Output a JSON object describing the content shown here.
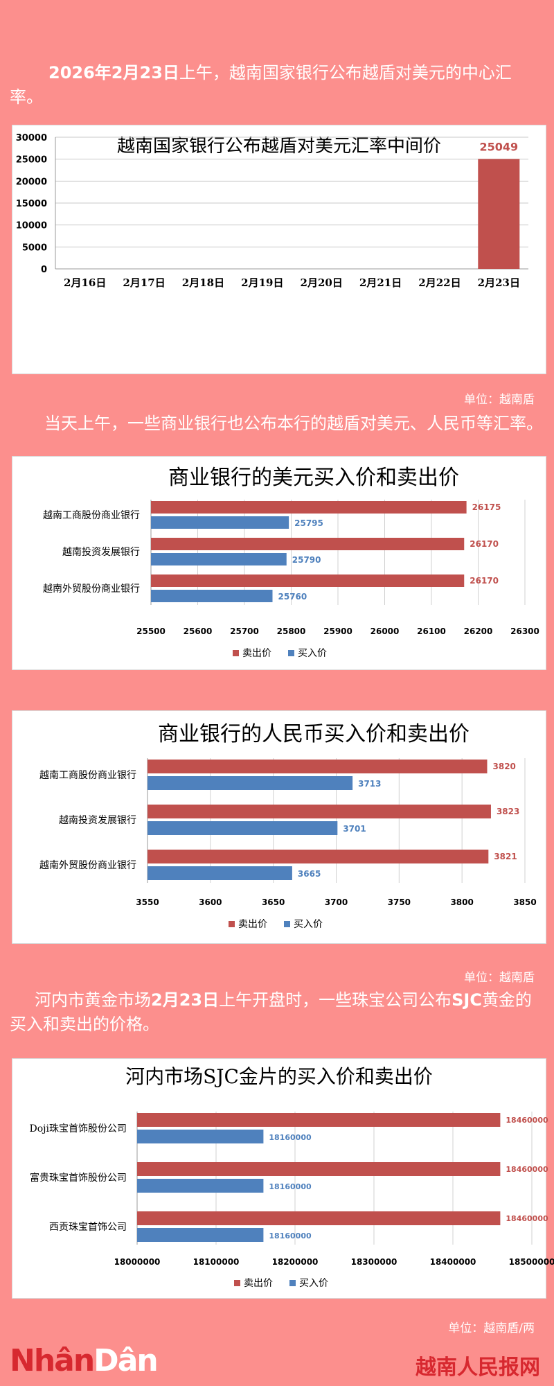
{
  "intro": {
    "lead": "2026年2月23日",
    "text": "上午，越南国家银行公布越盾对美元的中心汇率。"
  },
  "unit1": "单位：越南盾",
  "mid_text": "当天上午，一些商业银行也公布本行的越盾对美元、人民币等汇率。",
  "unit2": "单位：越南盾",
  "gold_text": {
    "p1": "河内市黄金市场",
    "b1": "2月23日",
    "p2": "上午开盘时，一些珠宝公司公布",
    "b2": "SJC",
    "p3": "黄金的买入和卖出的价格。"
  },
  "unit3": "单位：越南盾/两",
  "brand": {
    "part1": "Nhân",
    "part2": "Dân",
    "right": "越南人民报网"
  },
  "colors": {
    "sell": "#c0504d",
    "buy": "#4f81bd",
    "background": "#fc8f8d"
  },
  "chart_data": [
    {
      "type": "bar",
      "title": "越南国家银行公布越盾对美元汇率中间价",
      "categories": [
        "2月16日",
        "2月17日",
        "2月18日",
        "2月19日",
        "2月20日",
        "2月21日",
        "2月22日",
        "2月23日"
      ],
      "values": [
        null,
        null,
        null,
        null,
        null,
        null,
        null,
        25049
      ],
      "data_labels": [
        "",
        "",
        "",
        "",
        "",
        "",
        "",
        "25049"
      ],
      "ylim": [
        0,
        30000
      ],
      "yticks": [
        "0",
        "5000",
        "10000",
        "15000",
        "20000",
        "25000",
        "30000"
      ],
      "grid": true,
      "color": "#c0504d"
    },
    {
      "type": "bar",
      "orientation": "horizontal",
      "title": "商业银行的美元买入价和卖出价",
      "categories": [
        "越南工商股份商业银行",
        "越南投资发展银行",
        "越南外贸股份商业银行"
      ],
      "series": [
        {
          "name": "卖出价",
          "values": [
            26175,
            26170,
            26170
          ],
          "labels": [
            "26175",
            "26170",
            "26170"
          ]
        },
        {
          "name": "买入价",
          "values": [
            25795,
            25790,
            25760
          ],
          "labels": [
            "25795",
            "25790",
            "25760"
          ]
        }
      ],
      "xlim": [
        25500,
        26300
      ],
      "xticks": [
        "25500",
        "25600",
        "25700",
        "25800",
        "25900",
        "26000",
        "26100",
        "26200",
        "26300"
      ],
      "legend": "bottom",
      "grid": true
    },
    {
      "type": "bar",
      "orientation": "horizontal",
      "title": "商业银行的人民币买入价和卖出价",
      "categories": [
        "越南工商股份商业银行",
        "越南投资发展银行",
        "越南外贸股份商业银行"
      ],
      "series": [
        {
          "name": "卖出价",
          "values": [
            3820,
            3823,
            3821
          ],
          "labels": [
            "3820",
            "3823",
            "3821"
          ]
        },
        {
          "name": "买入价",
          "values": [
            3713,
            3701,
            3665
          ],
          "labels": [
            "3713",
            "3701",
            "3665"
          ]
        }
      ],
      "xlim": [
        3550,
        3850
      ],
      "xticks": [
        "3550",
        "3600",
        "3650",
        "3700",
        "3750",
        "3800",
        "3850"
      ],
      "legend": "bottom",
      "grid": true
    },
    {
      "type": "bar",
      "orientation": "horizontal",
      "title": "河内市场SJC金片的买入价和卖出价",
      "categories": [
        "Doji珠宝首饰股份公司",
        "富贵珠宝首饰股份公司",
        "西贡珠宝首饰公司"
      ],
      "series": [
        {
          "name": "卖出价",
          "values": [
            18460000,
            18460000,
            18460000
          ],
          "labels": [
            "18460000",
            "18460000",
            "18460000"
          ]
        },
        {
          "name": "买入价",
          "values": [
            18160000,
            18160000,
            18160000
          ],
          "labels": [
            "18160000",
            "18160000",
            "18160000"
          ]
        }
      ],
      "xlim": [
        18000000,
        18500000
      ],
      "xticks": [
        "18000000",
        "18100000",
        "18200000",
        "18300000",
        "18400000",
        "18500000"
      ],
      "legend": "bottom",
      "grid": true
    }
  ]
}
